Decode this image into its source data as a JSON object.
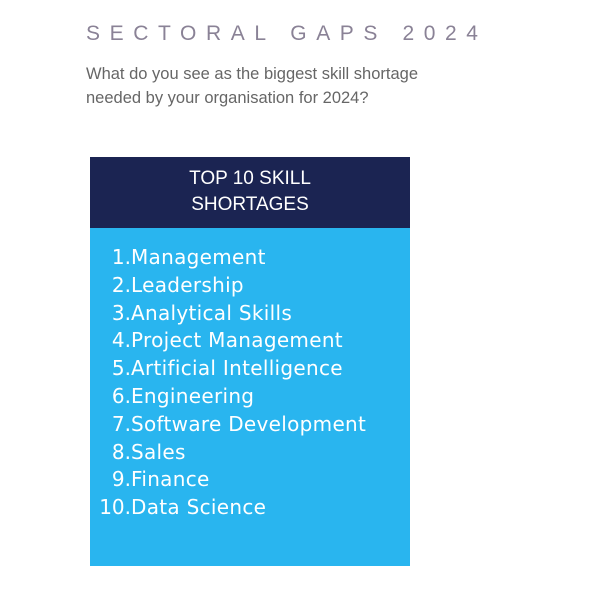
{
  "header": {
    "title": "SECTORAL GAPS 2024",
    "subtitle_lines": [
      "What do you see as the biggest skill shortage",
      "needed by your organisation for 2024?"
    ]
  },
  "card": {
    "title_lines": [
      "TOP 10 SKILL",
      "SHORTAGES"
    ],
    "items": [
      {
        "number": "1.",
        "label": "Management"
      },
      {
        "number": "2.",
        "label": "Leadership"
      },
      {
        "number": "3.",
        "label": "Analytical Skills"
      },
      {
        "number": "4.",
        "label": "Project Management"
      },
      {
        "number": "5.",
        "label": "Artificial Intelligence"
      },
      {
        "number": "6.",
        "label": "Engineering"
      },
      {
        "number": "7.",
        "label": "Software Development"
      },
      {
        "number": "8.",
        "label": "Sales"
      },
      {
        "number": "9.",
        "label": "Finance"
      },
      {
        "number": "10.",
        "label": "Data Science"
      }
    ]
  }
}
